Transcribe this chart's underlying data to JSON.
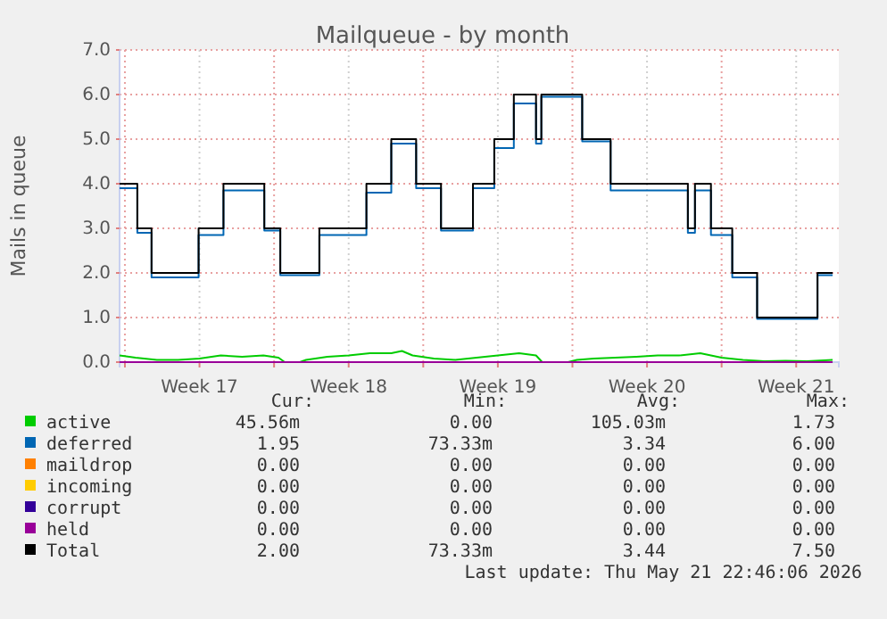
{
  "chart_data": {
    "type": "line",
    "title": "Mailqueue - by month",
    "ylabel": "Mails in queue",
    "xlim": [
      "2026-04-18T11:00",
      "2026-05-22T05:00"
    ],
    "ylim": [
      0,
      7
    ],
    "xticks": [
      {
        "value": "2026-04-18T17:00",
        "label": null
      },
      {
        "value": "2026-04-22T05:00",
        "label": "Week 17"
      },
      {
        "value": "2026-04-25T17:00",
        "label": null
      },
      {
        "value": "2026-04-29T05:00",
        "label": "Week 18"
      },
      {
        "value": "2026-05-02T17:00",
        "label": null
      },
      {
        "value": "2026-05-06T05:00",
        "label": "Week 19"
      },
      {
        "value": "2026-05-09T17:00",
        "label": null
      },
      {
        "value": "2026-05-13T05:00",
        "label": "Week 20"
      },
      {
        "value": "2026-05-16T17:00",
        "label": null
      },
      {
        "value": "2026-05-20T05:00",
        "label": "Week 21"
      }
    ],
    "yticks": [
      {
        "value": 0,
        "label": "0.0"
      },
      {
        "value": 1,
        "label": "1.0"
      },
      {
        "value": 2,
        "label": "2.0"
      },
      {
        "value": 3,
        "label": "3.0"
      },
      {
        "value": 4,
        "label": "4.0"
      },
      {
        "value": 5,
        "label": "5.0"
      },
      {
        "value": 6,
        "label": "6.0"
      },
      {
        "value": 7,
        "label": "7.0"
      }
    ],
    "grid": true,
    "legend": "bottom",
    "series": [
      {
        "name": "active",
        "color": "#00cc00",
        "x": [
          "2026-04-18T11:00",
          "2026-04-19T05:00",
          "2026-04-20T05:00",
          "2026-04-21T05:00",
          "2026-04-22T05:00",
          "2026-04-23T05:00",
          "2026-04-24T05:00",
          "2026-04-25T05:00",
          "2026-04-25T22:00",
          "2026-04-26T05:00",
          "2026-04-26T22:00",
          "2026-04-27T05:00",
          "2026-04-28T05:00",
          "2026-04-29T05:00",
          "2026-04-30T05:00",
          "2026-05-01T05:00",
          "2026-05-01T17:00",
          "2026-05-02T05:00",
          "2026-05-03T05:00",
          "2026-05-04T05:00",
          "2026-05-05T05:00",
          "2026-05-06T05:00",
          "2026-05-07T05:00",
          "2026-05-08T00:00",
          "2026-05-08T07:00",
          "2026-05-09T12:00",
          "2026-05-09T22:00",
          "2026-05-10T17:00",
          "2026-05-11T17:00",
          "2026-05-12T17:00",
          "2026-05-13T17:00",
          "2026-05-14T17:00",
          "2026-05-15T17:00",
          "2026-05-16T17:00",
          "2026-05-17T17:00",
          "2026-05-18T17:00",
          "2026-05-19T17:00",
          "2026-05-20T17:00",
          "2026-05-21T22:00"
        ],
        "values": [
          0.15,
          0.1,
          0.05,
          0.05,
          0.08,
          0.15,
          0.12,
          0.15,
          0.1,
          0,
          0,
          0.05,
          0.12,
          0.15,
          0.2,
          0.2,
          0.25,
          0.15,
          0.08,
          0.05,
          0.1,
          0.15,
          0.2,
          0.15,
          0,
          0,
          0.05,
          0.08,
          0.1,
          0.12,
          0.15,
          0.15,
          0.2,
          0.1,
          0.05,
          0.02,
          0.03,
          0.02,
          0.05
        ]
      },
      {
        "name": "deferred",
        "color": "#0066b3",
        "type": "step",
        "x": [
          "2026-04-18T11:00",
          "2026-04-19T07:00",
          "2026-04-19T23:00",
          "2026-04-22T04:00",
          "2026-04-23T08:00",
          "2026-04-25T06:00",
          "2026-04-26T00:00",
          "2026-04-27T20:00",
          "2026-04-30T01:00",
          "2026-05-01T05:00",
          "2026-05-02T09:00",
          "2026-05-03T13:00",
          "2026-05-05T01:00",
          "2026-05-06T01:00",
          "2026-05-06T23:00",
          "2026-05-08T00:00",
          "2026-05-08T06:00",
          "2026-05-10T04:00",
          "2026-05-11T12:00",
          "2026-05-15T03:00",
          "2026-05-15T11:00",
          "2026-05-16T05:00",
          "2026-05-17T05:00",
          "2026-05-18T09:00",
          "2026-05-21T05:00",
          "2026-05-21T22:00"
        ],
        "values": [
          3.9,
          2.9,
          1.9,
          2.85,
          3.85,
          2.95,
          1.95,
          2.85,
          3.8,
          4.9,
          3.9,
          2.95,
          3.9,
          4.8,
          5.8,
          4.9,
          5.95,
          4.95,
          3.85,
          2.9,
          3.85,
          2.85,
          1.9,
          0.97,
          1.95,
          1.95
        ]
      },
      {
        "name": "maildrop",
        "color": "#ff8000"
      },
      {
        "name": "incoming",
        "color": "#ffcc00"
      },
      {
        "name": "corrupt",
        "color": "#330099"
      },
      {
        "name": "held",
        "color": "#990099",
        "x": [
          "2026-04-18T11:00",
          "2026-05-21T22:00"
        ],
        "values": [
          0,
          0
        ]
      },
      {
        "name": "Total",
        "color": "#000000",
        "type": "step",
        "x": [
          "2026-04-18T11:00",
          "2026-04-19T07:00",
          "2026-04-19T23:00",
          "2026-04-22T04:00",
          "2026-04-23T08:00",
          "2026-04-25T06:00",
          "2026-04-26T00:00",
          "2026-04-27T20:00",
          "2026-04-30T01:00",
          "2026-05-01T05:00",
          "2026-05-02T09:00",
          "2026-05-03T13:00",
          "2026-05-05T01:00",
          "2026-05-06T01:00",
          "2026-05-06T23:00",
          "2026-05-08T00:00",
          "2026-05-08T06:00",
          "2026-05-10T04:00",
          "2026-05-11T12:00",
          "2026-05-15T03:00",
          "2026-05-15T11:00",
          "2026-05-16T05:00",
          "2026-05-17T05:00",
          "2026-05-18T09:00",
          "2026-05-21T05:00",
          "2026-05-21T22:00"
        ],
        "values": [
          4,
          3,
          2,
          3,
          4,
          3,
          2,
          3,
          4,
          5,
          4,
          3,
          4,
          5,
          6,
          5,
          6,
          5,
          4,
          3,
          4,
          3,
          2,
          1,
          2,
          2
        ]
      }
    ],
    "annotations": [
      "Cur:",
      "Min:",
      "Avg:",
      "Max:",
      "45.56m",
      "0.00",
      "105.03m",
      "1.73",
      "1.95",
      "73.33m",
      "3.34",
      "6.00",
      "0.00",
      "0.00",
      "0.00",
      "0.00",
      "0.00",
      "0.00",
      "0.00",
      "0.00",
      "0.00",
      "0.00",
      "0.00",
      "0.00",
      "0.00",
      "0.00",
      "0.00",
      "0.00",
      "2.00",
      "73.33m",
      "3.44",
      "7.50",
      "Last update: Thu May 21 22:46:06 2026"
    ]
  }
}
